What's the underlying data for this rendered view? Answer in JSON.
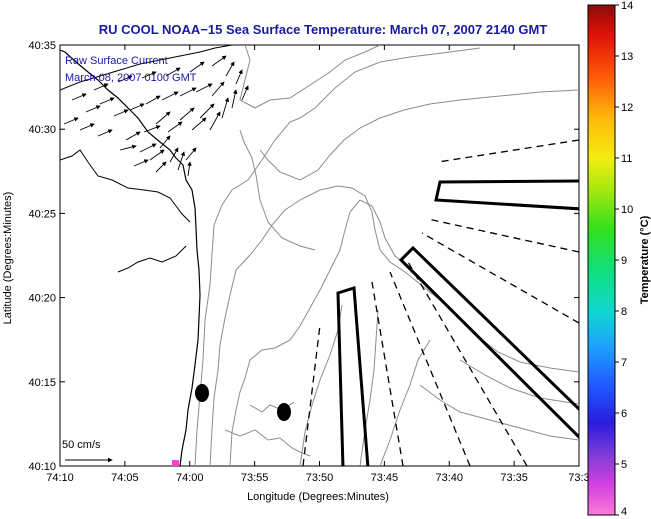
{
  "chart_data": {
    "type": "map",
    "title": "RU COOL  NOAA−15  Sea Surface Temperature:  March 07, 2007 2140 GMT",
    "xlabel": "Longitude (Degrees:Minutes)",
    "ylabel": "Latitude (Degrees:Minutes)",
    "x_ticks": [
      "74:10",
      "74:05",
      "74:00",
      "73:55",
      "73:50",
      "73:45",
      "73:40",
      "73:35",
      "73:3"
    ],
    "y_ticks": [
      "40:35",
      "40:30",
      "40:25",
      "40:20",
      "40:15",
      "40:10"
    ],
    "annotations": [
      "Raw Surface Current",
      "March 08, 2007 0100 GMT"
    ],
    "scale_label": "50 cm/s",
    "colorbar": {
      "label": "Temperature (°C)",
      "min": 4,
      "max": 14,
      "ticks": [
        "4",
        "5",
        "6",
        "7",
        "8",
        "9",
        "10",
        "11",
        "12",
        "13",
        "14"
      ]
    },
    "grid": false
  },
  "colors": {
    "title": "#1a1aa0",
    "annotation": "#1a1aa0",
    "contour": "#8c8c8c",
    "ink": "#000000"
  }
}
